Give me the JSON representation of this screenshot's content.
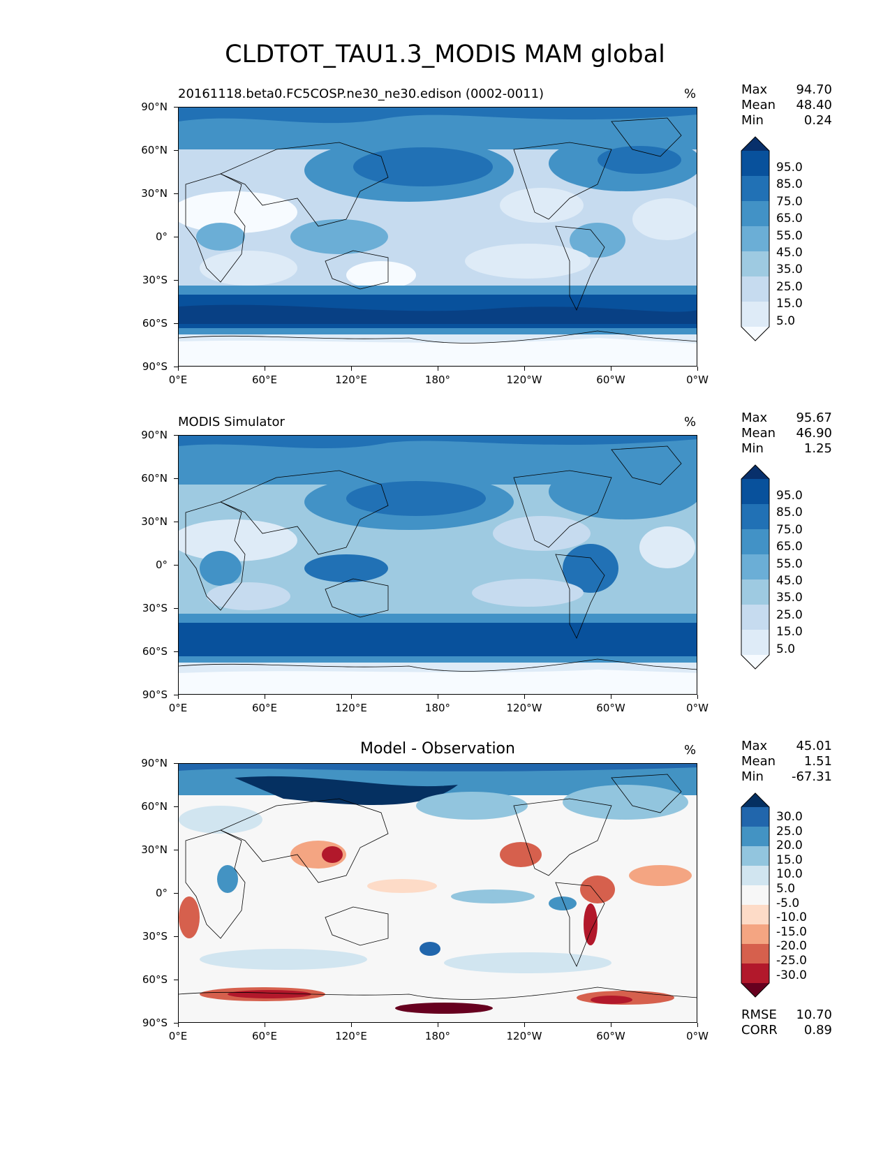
{
  "title": "CLDTOT_TAU1.3_MODIS MAM global",
  "lat_ticks": [
    "90°N",
    "60°N",
    "30°N",
    "0°",
    "30°S",
    "60°S",
    "90°S"
  ],
  "lon_ticks": [
    "0°E",
    "60°E",
    "120°E",
    "180°",
    "120°W",
    "60°W",
    "0°W"
  ],
  "panels": [
    {
      "title": "20161118.beta0.FC5COSP.ne30_ne30.edison (0002-0011)",
      "units": "%",
      "stats": [
        {
          "label": "Max",
          "value": "94.70"
        },
        {
          "label": "Mean",
          "value": "48.40"
        },
        {
          "label": "Min",
          "value": "0.24"
        }
      ],
      "colorbar_labels": [
        "95.0",
        "85.0",
        "75.0",
        "65.0",
        "55.0",
        "45.0",
        "35.0",
        "25.0",
        "15.0",
        "5.0"
      ],
      "colors": [
        "#08306b",
        "#08519c",
        "#2171b5",
        "#4292c6",
        "#6baed6",
        "#9ecae1",
        "#c6dbef",
        "#deebf7",
        "#f7fbff"
      ]
    },
    {
      "title": "MODIS Simulator",
      "units": "%",
      "stats": [
        {
          "label": "Max",
          "value": "95.67"
        },
        {
          "label": "Mean",
          "value": "46.90"
        },
        {
          "label": "Min",
          "value": "1.25"
        }
      ],
      "colorbar_labels": [
        "95.0",
        "85.0",
        "75.0",
        "65.0",
        "55.0",
        "45.0",
        "35.0",
        "25.0",
        "15.0",
        "5.0"
      ],
      "colors": [
        "#08306b",
        "#08519c",
        "#2171b5",
        "#4292c6",
        "#6baed6",
        "#9ecae1",
        "#c6dbef",
        "#deebf7",
        "#f7fbff"
      ]
    },
    {
      "title": "Model - Observation",
      "units": "%",
      "stats": [
        {
          "label": "Max",
          "value": "45.01"
        },
        {
          "label": "Mean",
          "value": "1.51"
        },
        {
          "label": "Min",
          "value": "-67.31"
        }
      ],
      "colorbar_labels": [
        "30.0",
        "25.0",
        "20.0",
        "15.0",
        "10.0",
        "5.0",
        "-5.0",
        "-10.0",
        "-15.0",
        "-20.0",
        "-25.0",
        "-30.0"
      ],
      "colors": [
        "#053061",
        "#2166ac",
        "#4393c3",
        "#92c5de",
        "#d1e5f0",
        "#f7f7f7",
        "#fddbc7",
        "#f4a582",
        "#d6604d",
        "#b2182b",
        "#67001f"
      ],
      "extra_stats": [
        {
          "label": "RMSE",
          "value": "10.70"
        },
        {
          "label": "CORR",
          "value": "0.89"
        }
      ]
    }
  ]
}
